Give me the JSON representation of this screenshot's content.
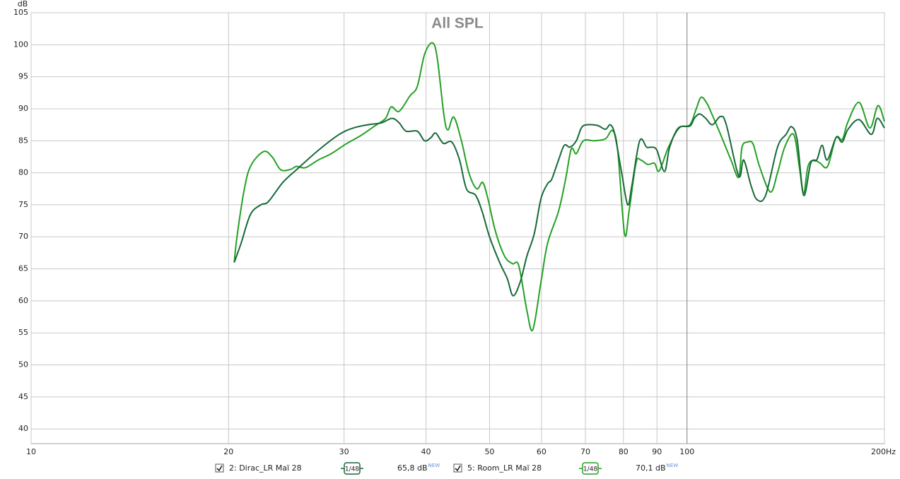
{
  "chart_data": {
    "type": "line",
    "title": "All SPL",
    "y_label": "dB",
    "log_x": true,
    "grid": true,
    "xlim": [
      10,
      200
    ],
    "ylim": [
      37.7,
      105
    ],
    "xticks": [
      10,
      20,
      30,
      40,
      50,
      60,
      70,
      80,
      90,
      100,
      {
        "value": 200,
        "label": "200Hz"
      }
    ],
    "yticks": [
      40,
      45,
      50,
      55,
      60,
      65,
      70,
      75,
      80,
      85,
      90,
      95,
      100,
      105
    ],
    "series": [
      {
        "name": "2: Dirac_LR Maï 28",
        "color": "#17693a",
        "smoothing": "1/48",
        "level": "65,8 dB",
        "badge": "NEW",
        "x": [
          20.4,
          20.9,
          21.6,
          22.4,
          23.0,
          24.2,
          25.4,
          27.4,
          29.5,
          31.0,
          32.6,
          34.2,
          35.5,
          36.4,
          37.3,
          38.8,
          39.8,
          40.7,
          41.4,
          42.5,
          43.8,
          45.0,
          46.1,
          47.6,
          48.7,
          50.0,
          51.8,
          53.2,
          54.3,
          55.7,
          57.0,
          58.5,
          59.9,
          61.3,
          62.2,
          63.7,
          65.0,
          66.3,
          67.8,
          69.0,
          70.3,
          73.0,
          75.1,
          76.4,
          77.6,
          79.5,
          81.2,
          82.4,
          84.7,
          86.8,
          88.4,
          90.0,
          92.4,
          94.1,
          97.0,
          101.0,
          102.6,
          104.5,
          106.8,
          109.3,
          112.5,
          114.8,
          119.9,
          122.0,
          125.2,
          127.9,
          131.8,
          137.4,
          141.6,
          144.4,
          147.3,
          150.6,
          154.4,
          157.7,
          160.7,
          163.6,
          168.8,
          172.5,
          176.0,
          183.0,
          191.0,
          195.0,
          200.0
        ],
        "values": [
          66,
          69,
          73.5,
          75,
          75.5,
          78.5,
          80.5,
          83.5,
          86,
          87,
          87.5,
          87.8,
          88.5,
          87.8,
          86.5,
          86.5,
          85,
          85.5,
          86.2,
          84.6,
          84.8,
          82,
          77.5,
          76.5,
          74,
          70,
          66,
          63.5,
          60.8,
          63,
          67,
          70.5,
          76,
          78.3,
          79,
          82,
          84.3,
          84,
          85,
          87,
          87.5,
          87.4,
          86.8,
          87.5,
          86,
          80,
          75,
          78,
          85,
          84,
          84,
          83.5,
          80.2,
          84,
          87,
          87.3,
          88.5,
          89.2,
          88.5,
          87.5,
          88.8,
          87.5,
          79.5,
          82,
          78,
          75.8,
          76.5,
          84,
          86,
          87.2,
          85,
          76.5,
          81.5,
          82,
          84.3,
          82,
          85.5,
          84.8,
          86.8,
          88.3,
          86,
          88.5,
          87
        ]
      },
      {
        "name": "5: Room_LR Maï 28",
        "color": "#24a024",
        "smoothing": "1/48",
        "level": "70,1 dB",
        "badge": "NEW",
        "x": [
          20.4,
          20.6,
          21.1,
          21.6,
          22.6,
          23.3,
          24.0,
          24.8,
          25.4,
          26.2,
          27.4,
          28.7,
          30.2,
          31.8,
          33.4,
          34.7,
          35.4,
          36.4,
          37.8,
          38.8,
          39.8,
          40.9,
          41.6,
          42.6,
          43.2,
          44.1,
          45.3,
          46.5,
          47.8,
          48.8,
          49.7,
          51.0,
          52.7,
          54.2,
          55.4,
          57.0,
          58.2,
          59.9,
          61.3,
          63.7,
          65.3,
          66.6,
          67.8,
          69.5,
          72.2,
          75.1,
          77.0,
          78.4,
          80.3,
          81.6,
          83.6,
          85.0,
          87.1,
          89.2,
          90.7,
          93.7,
          97.3,
          101.0,
          103.3,
          105.1,
          107.3,
          109.3,
          112.5,
          116.7,
          119.9,
          121.3,
          123.7,
          126.1,
          129.0,
          134.0,
          137.4,
          140.9,
          145.4,
          148.3,
          150.6,
          152.9,
          156.0,
          159.6,
          163.8,
          168.7,
          172.5,
          176.0,
          183.0,
          190.0,
          195.5,
          200.0
        ],
        "values": [
          66,
          70,
          77,
          81,
          83.3,
          82.5,
          80.5,
          80.5,
          81,
          80.8,
          82,
          83,
          84.5,
          85.8,
          87.3,
          88.5,
          90.3,
          89.6,
          92,
          93.5,
          98.5,
          100.3,
          98,
          89,
          86.7,
          88.7,
          85,
          80,
          77.5,
          78.5,
          76,
          71,
          67,
          65.8,
          65.5,
          58.5,
          55.5,
          63,
          69,
          74,
          79,
          83.7,
          83,
          85,
          85,
          85.3,
          86.6,
          83.5,
          70.5,
          74,
          81.5,
          82,
          81.3,
          81.5,
          80.3,
          84,
          87,
          87.5,
          90,
          91.8,
          90.8,
          89,
          86,
          82,
          79.3,
          84,
          84.8,
          84.5,
          81,
          77,
          80,
          84,
          86,
          81,
          76.8,
          81,
          82,
          81.5,
          81,
          85.5,
          85.2,
          88,
          91,
          87,
          90.5,
          88
        ]
      }
    ]
  }
}
